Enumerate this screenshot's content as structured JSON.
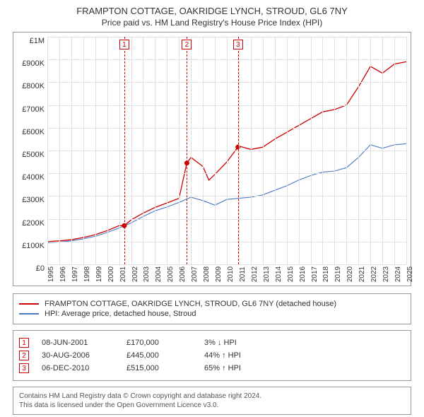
{
  "title": {
    "line1": "FRAMPTON COTTAGE, OAKRIDGE LYNCH, STROUD, GL6 7NY",
    "line2": "Price paid vs. HM Land Registry's House Price Index (HPI)"
  },
  "chart": {
    "type": "line",
    "background_color": "#ffffff",
    "grid_color": "#e0e0e0",
    "border_color": "#999999",
    "y": {
      "min": 0,
      "max": 1000000,
      "tick_step": 100000,
      "label_prefix": "£",
      "ticks": [
        "£0",
        "£100K",
        "£200K",
        "£300K",
        "£400K",
        "£500K",
        "£600K",
        "£700K",
        "£800K",
        "£900K",
        "£1M"
      ]
    },
    "x": {
      "min": 1995,
      "max": 2025,
      "tick_step": 1,
      "ticks": [
        "1995",
        "1996",
        "1997",
        "1998",
        "1999",
        "2000",
        "2001",
        "2002",
        "2003",
        "2004",
        "2005",
        "2006",
        "2007",
        "2008",
        "2009",
        "2010",
        "2011",
        "2012",
        "2013",
        "2014",
        "2015",
        "2016",
        "2017",
        "2018",
        "2019",
        "2020",
        "2021",
        "2022",
        "2023",
        "2024",
        "2025"
      ]
    },
    "series": [
      {
        "name": "FRAMPTON COTTAGE, OAKRIDGE LYNCH, STROUD, GL6 7NY (detached house)",
        "color": "#cc0000",
        "line_width": 1.3,
        "points": [
          [
            1995,
            100000
          ],
          [
            1996,
            103000
          ],
          [
            1997,
            108000
          ],
          [
            1998,
            118000
          ],
          [
            1999,
            130000
          ],
          [
            2000,
            148000
          ],
          [
            2001,
            170000
          ],
          [
            2001.43,
            170000
          ],
          [
            2002,
            195000
          ],
          [
            2003,
            225000
          ],
          [
            2004,
            250000
          ],
          [
            2005,
            270000
          ],
          [
            2006,
            290000
          ],
          [
            2006.66,
            445000
          ],
          [
            2007,
            470000
          ],
          [
            2008,
            430000
          ],
          [
            2008.5,
            370000
          ],
          [
            2009,
            395000
          ],
          [
            2010,
            450000
          ],
          [
            2010.93,
            515000
          ],
          [
            2011,
            520000
          ],
          [
            2012,
            505000
          ],
          [
            2013,
            515000
          ],
          [
            2014,
            550000
          ],
          [
            2015,
            580000
          ],
          [
            2016,
            610000
          ],
          [
            2017,
            640000
          ],
          [
            2018,
            670000
          ],
          [
            2019,
            680000
          ],
          [
            2020,
            700000
          ],
          [
            2021,
            780000
          ],
          [
            2022,
            870000
          ],
          [
            2023,
            840000
          ],
          [
            2024,
            880000
          ],
          [
            2025,
            890000
          ]
        ]
      },
      {
        "name": "HPI: Average price, detached house, Stroud",
        "color": "#4a78c4",
        "line_width": 1.1,
        "points": [
          [
            1995,
            95000
          ],
          [
            1996,
            98000
          ],
          [
            1997,
            103000
          ],
          [
            1998,
            112000
          ],
          [
            1999,
            123000
          ],
          [
            2000,
            140000
          ],
          [
            2001,
            160000
          ],
          [
            2002,
            182000
          ],
          [
            2003,
            210000
          ],
          [
            2004,
            235000
          ],
          [
            2005,
            252000
          ],
          [
            2006,
            272000
          ],
          [
            2007,
            295000
          ],
          [
            2008,
            280000
          ],
          [
            2009,
            260000
          ],
          [
            2010,
            285000
          ],
          [
            2011,
            290000
          ],
          [
            2012,
            295000
          ],
          [
            2013,
            305000
          ],
          [
            2014,
            325000
          ],
          [
            2015,
            345000
          ],
          [
            2016,
            370000
          ],
          [
            2017,
            390000
          ],
          [
            2018,
            405000
          ],
          [
            2019,
            410000
          ],
          [
            2020,
            425000
          ],
          [
            2021,
            470000
          ],
          [
            2022,
            525000
          ],
          [
            2023,
            510000
          ],
          [
            2024,
            525000
          ],
          [
            2025,
            530000
          ]
        ]
      }
    ],
    "markers": [
      {
        "id": "1",
        "x": 2001.43,
        "y": 170000
      },
      {
        "id": "2",
        "x": 2006.66,
        "y": 445000
      },
      {
        "id": "3",
        "x": 2010.93,
        "y": 515000
      }
    ],
    "marker_line_color": "#cc0000",
    "marker_box_color": "#cc0000"
  },
  "legend": {
    "items": [
      {
        "label": "FRAMPTON COTTAGE, OAKRIDGE LYNCH, STROUD, GL6 7NY (detached house)",
        "color": "#cc0000"
      },
      {
        "label": "HPI: Average price, detached house, Stroud",
        "color": "#4a78c4"
      }
    ]
  },
  "events": [
    {
      "id": "1",
      "date": "08-JUN-2001",
      "price": "£170,000",
      "diff": "3% ↓ HPI"
    },
    {
      "id": "2",
      "date": "30-AUG-2006",
      "price": "£445,000",
      "diff": "44% ↑ HPI"
    },
    {
      "id": "3",
      "date": "06-DEC-2010",
      "price": "£515,000",
      "diff": "65% ↑ HPI"
    }
  ],
  "footer": {
    "line1": "Contains HM Land Registry data © Crown copyright and database right 2024.",
    "line2": "This data is licensed under the Open Government Licence v3.0."
  }
}
